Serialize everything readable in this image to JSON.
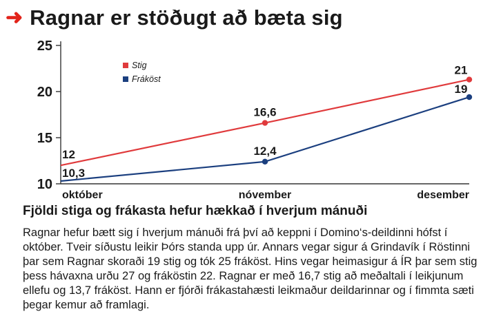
{
  "header": {
    "arrow_icon": "arrow-right-icon",
    "title": "Ragnar er stöðugt að bæta sig"
  },
  "chart_data": {
    "type": "line",
    "title": "Ragnar er stöðugt að bæta sig",
    "categories": [
      "október",
      "nóvember",
      "desember"
    ],
    "series": [
      {
        "name": "Stig",
        "values": [
          12,
          16.6,
          21.3
        ],
        "labels": [
          "12",
          "16,6",
          "21"
        ],
        "color": "#e03a3c"
      },
      {
        "name": "Fráköst",
        "values": [
          10.3,
          12.4,
          19.4
        ],
        "labels": [
          "10,3",
          "12,4",
          "19"
        ],
        "color": "#1b3f7f"
      }
    ],
    "ylim": [
      10,
      25
    ],
    "yticks": [
      "10",
      "15",
      "20",
      "25"
    ],
    "grid": false,
    "legend": "top-left"
  },
  "article": {
    "subhead": "Fjöldi stiga og frákasta hefur hækkað í hverjum mánuði",
    "body": "Ragnar hefur bætt sig í hverjum mánuði frá því að keppni í Domino‘s-deildinni hófst í október.  Tveir síðustu leikir Þórs standa upp úr. Annars vegar sigur á Grindavík í Röstinni þar sem Ragnar skoraði 19 stig og tók 25 fráköst. Hins vegar heimasigur á ÍR þar sem stig þess hávaxna urðu 27 og fráköstin 22. Ragnar er með 16,7 stig að meðaltali í leikjunum ellefu og 13,7 fráköst. Hann er fjórði frákastahæsti leikmaður deildarinnar og í fimmta sæti þegar kemur að framlagi."
  }
}
